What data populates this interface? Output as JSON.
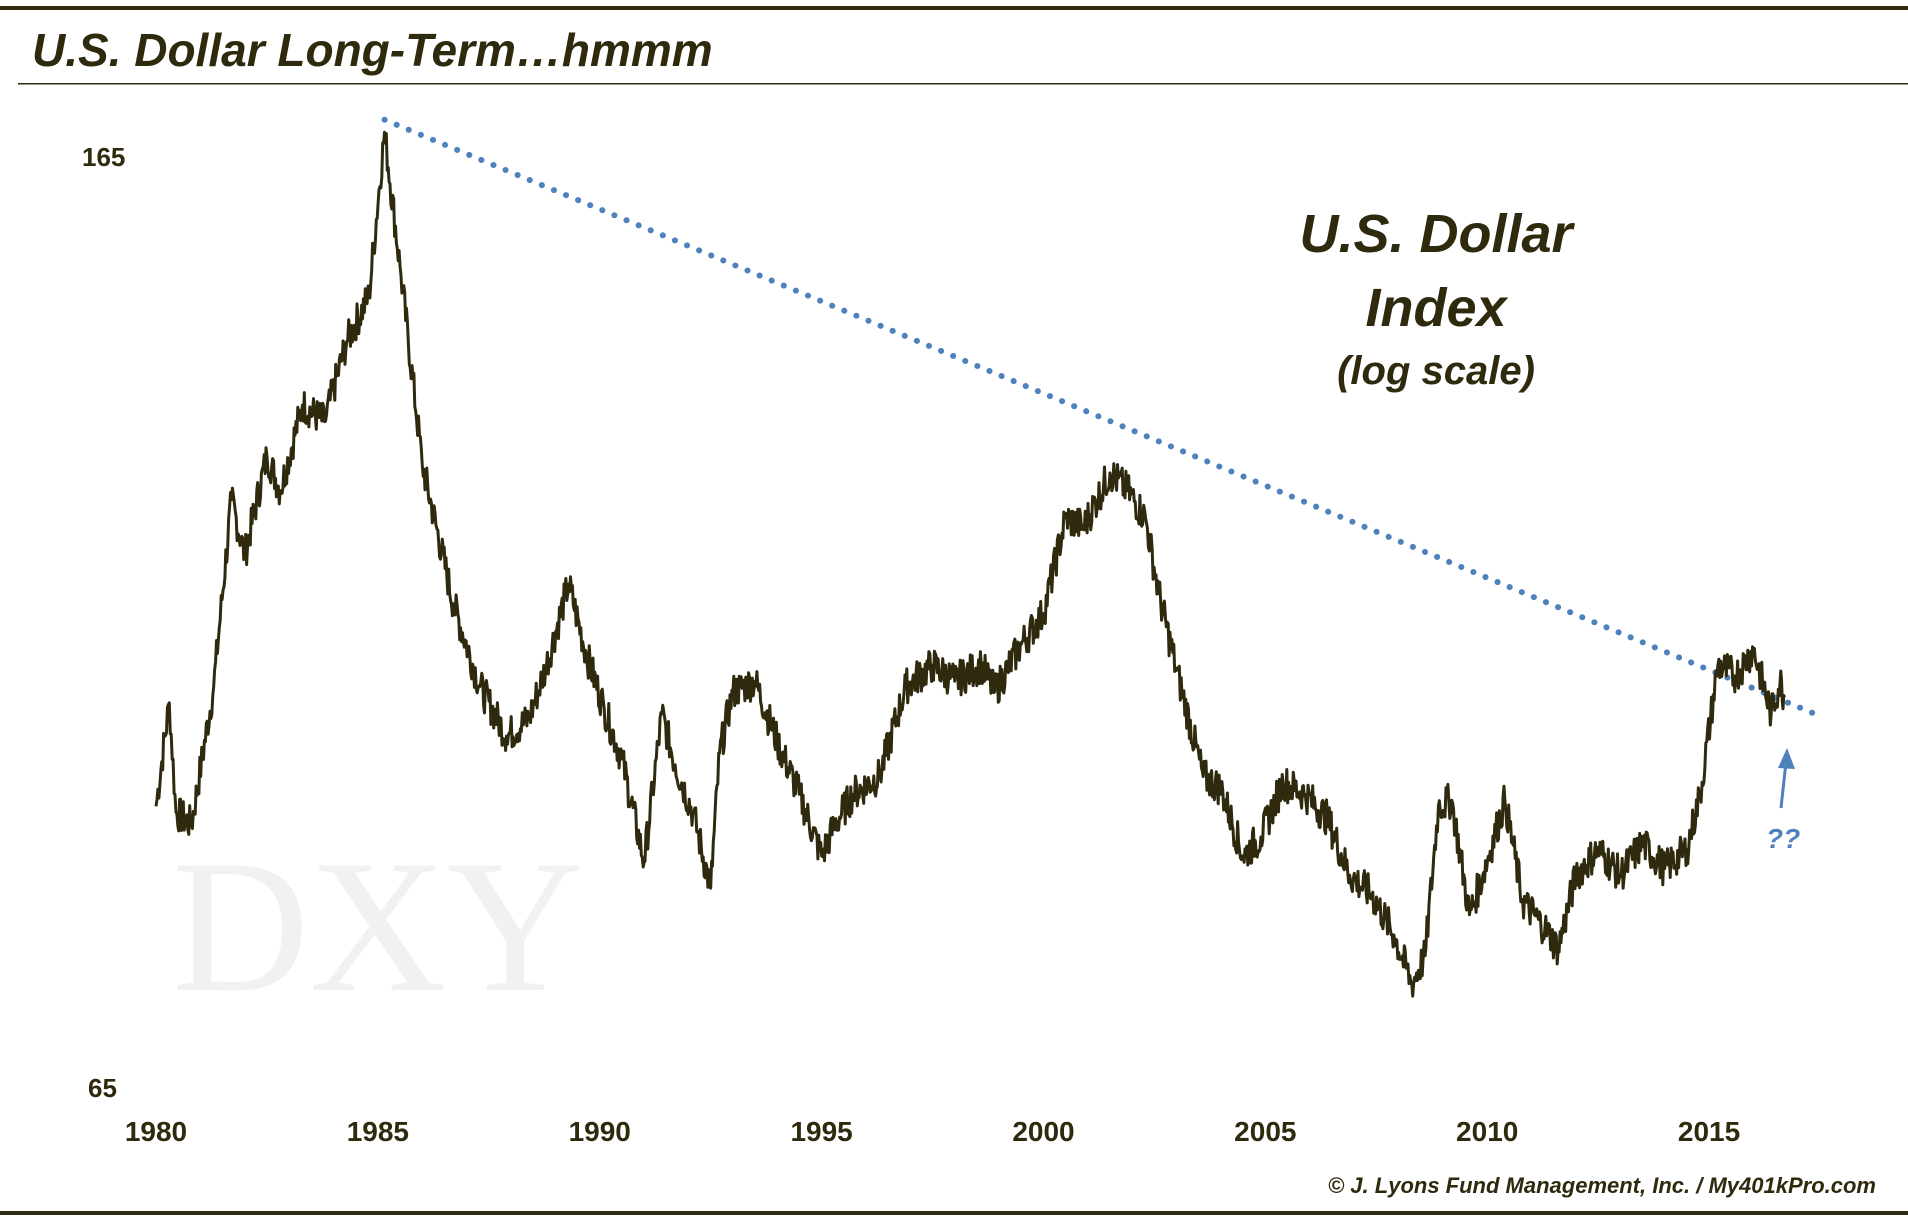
{
  "colors": {
    "line": "#2f2a0d",
    "trend": "#4f81bd",
    "text": "#2f2a0d",
    "rule": "#2f2a0d"
  },
  "header": {
    "title": "U.S. Dollar Long-Term…hmmm"
  },
  "annotation": {
    "line1": "U.S. Dollar",
    "line2": "Index",
    "line3": "(log scale)",
    "question": "??"
  },
  "watermark": "DXY",
  "footer": {
    "copyright": "© J. Lyons Fund Management, Inc. / My401kPro.com"
  },
  "chart_data": {
    "type": "line",
    "title": "U.S. Dollar Index",
    "subtitle": "(log scale)",
    "y_scale": "log",
    "ylim": [
      65,
      165
    ],
    "y_ticks": [
      "165",
      "65"
    ],
    "xlim": [
      1980,
      2017.5
    ],
    "x_ticks": [
      "1980",
      "1985",
      "1990",
      "1995",
      "2000",
      "2005",
      "2010",
      "2015"
    ],
    "series": [
      {
        "name": "DXY",
        "x": [
          1980.0,
          1980.3,
          1980.45,
          1980.8,
          1981.3,
          1981.7,
          1982.0,
          1982.5,
          1982.8,
          1983.3,
          1983.8,
          1984.3,
          1984.8,
          1985.15,
          1985.5,
          1986.0,
          1986.7,
          1987.3,
          1987.9,
          1988.4,
          1988.8,
          1989.3,
          1989.7,
          1990.1,
          1990.5,
          1991.0,
          1991.4,
          1991.7,
          1992.1,
          1992.5,
          1992.7,
          1993.0,
          1993.5,
          1994.0,
          1994.5,
          1995.0,
          1995.3,
          1995.7,
          1996.3,
          1996.9,
          1997.5,
          1998.0,
          1998.6,
          1998.9,
          1999.5,
          2000.0,
          2000.5,
          2000.9,
          2001.5,
          2001.9,
          2002.3,
          2002.6,
          2003.0,
          2003.6,
          2004.0,
          2004.5,
          2004.9,
          2005.4,
          2005.9,
          2006.4,
          2006.9,
          2007.4,
          2007.9,
          2008.3,
          2008.6,
          2008.9,
          2009.2,
          2009.6,
          2009.9,
          2010.4,
          2010.8,
          2011.3,
          2011.6,
          2012.0,
          2012.5,
          2013.0,
          2013.5,
          2014.0,
          2014.5,
          2014.8,
          2015.2,
          2015.6,
          2016.0,
          2016.4,
          2016.6,
          2016.7
        ],
        "values": [
          85.5,
          94.5,
          85.0,
          84.0,
          96.0,
          115.0,
          109.0,
          120.0,
          116.0,
          126.0,
          124.0,
          134.0,
          140.0,
          164.0,
          144.0,
          119.0,
          104.0,
          96.0,
          91.5,
          93.0,
          98.0,
          106.0,
          99.0,
          94.0,
          89.5,
          81.0,
          93.5,
          89.0,
          85.0,
          79.0,
          90.0,
          95.5,
          96.5,
          91.0,
          86.5,
          81.5,
          84.0,
          86.5,
          88.0,
          96.0,
          98.0,
          96.5,
          98.0,
          95.5,
          100.0,
          103.0,
          113.0,
          112.0,
          118.0,
          116.0,
          113.0,
          105.0,
          97.5,
          88.0,
          87.0,
          81.5,
          83.0,
          87.5,
          86.5,
          84.5,
          80.0,
          78.5,
          75.5,
          72.0,
          74.0,
          85.5,
          86.0,
          77.0,
          80.0,
          86.0,
          78.0,
          76.0,
          74.5,
          80.0,
          82.0,
          80.0,
          82.5,
          80.5,
          82.0,
          86.5,
          98.0,
          97.0,
          99.5,
          93.5,
          96.5,
          95.0
        ]
      },
      {
        "name": "Trendline",
        "style": "dotted",
        "x": [
          1985.15,
          2017.5
        ],
        "values": [
          166.0,
          93.3
        ]
      }
    ]
  }
}
